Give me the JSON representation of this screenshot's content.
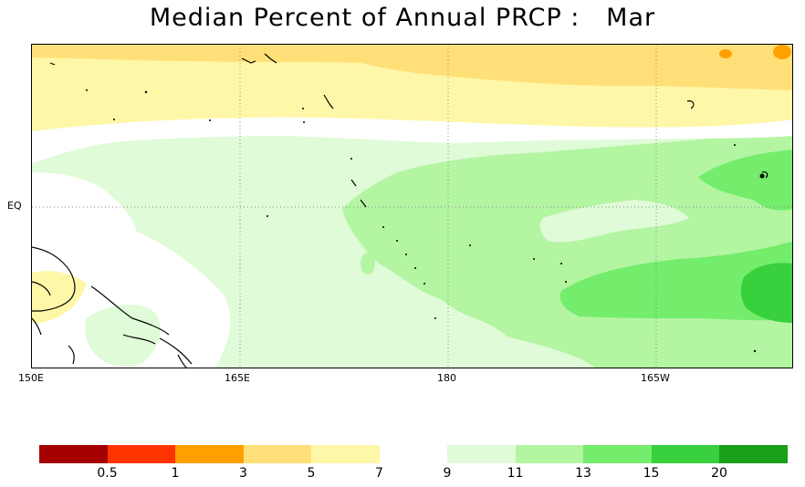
{
  "title": "Median Percent of Annual PRCP :   Mar",
  "map": {
    "x_labels": [
      "150E",
      "165E",
      "180",
      "165W"
    ],
    "y_labels": [
      "EQ"
    ]
  },
  "colorbar": {
    "bins": [
      {
        "color": "#a50000"
      },
      {
        "color": "#ff3300"
      },
      {
        "color": "#ffa000"
      },
      {
        "color": "#ffe078"
      },
      {
        "color": "#fff7a8"
      },
      {
        "color": "#ffffff"
      },
      {
        "color": "#e0fbd8"
      },
      {
        "color": "#b4f5a2"
      },
      {
        "color": "#74ec6c"
      },
      {
        "color": "#38d03c"
      },
      {
        "color": "#18a018"
      }
    ],
    "labels": [
      "0.5",
      "1",
      "3",
      "5",
      "7",
      "9",
      "11",
      "13",
      "15",
      "20"
    ]
  }
}
